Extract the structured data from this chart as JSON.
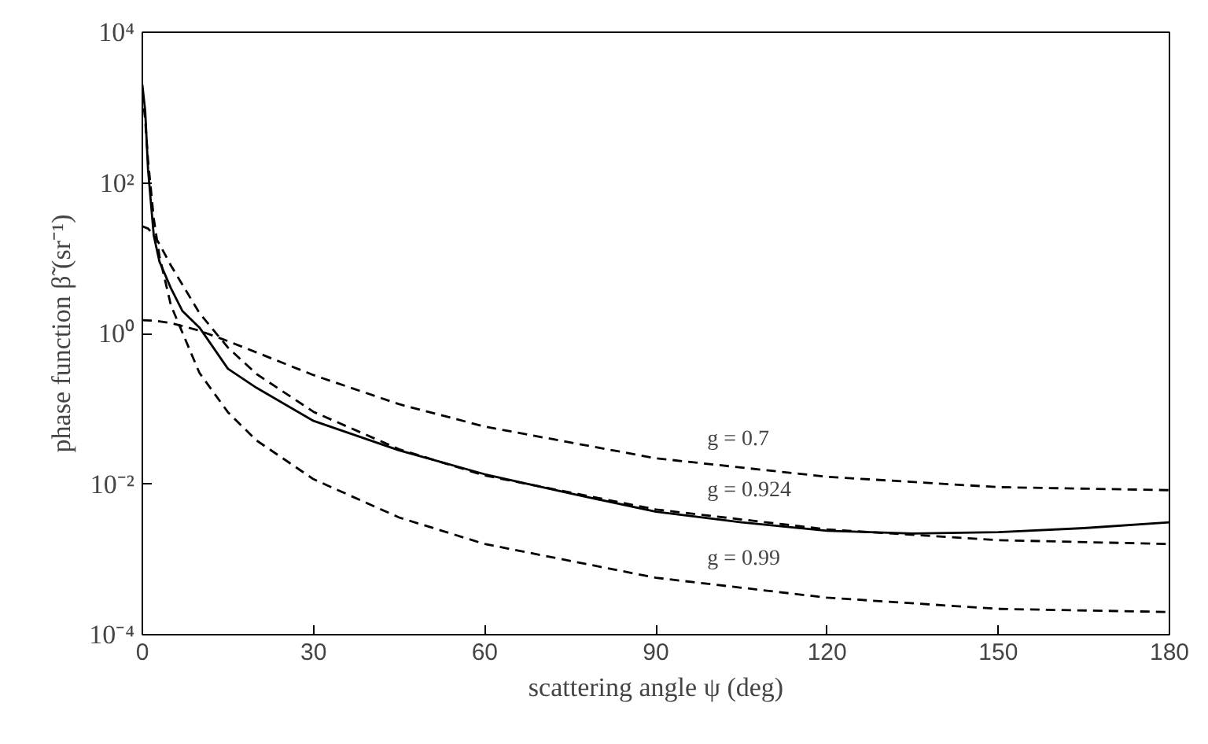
{
  "chart_data": {
    "type": "line",
    "xlabel": "scattering angle ψ (deg)",
    "ylabel": "phase function β̃ (sr⁻¹)",
    "log": "y",
    "grid": false,
    "legend": false,
    "marker": "none",
    "xlim": [
      0,
      180
    ],
    "xticks": [
      0,
      30,
      60,
      90,
      120,
      150,
      180
    ],
    "ylim": [
      0.0001,
      10000
    ],
    "yticks": [
      {
        "value": 0.0001,
        "label": "10⁻⁴"
      },
      {
        "value": 0.01,
        "label": "10⁻²"
      },
      {
        "value": 1,
        "label": "10⁰"
      },
      {
        "value": 100,
        "label": "10²"
      },
      {
        "value": 10000,
        "label": "10⁴"
      }
    ],
    "series": [
      {
        "color": "#000000",
        "line_style": "solid",
        "x": [
          0,
          0.5,
          1,
          2,
          3,
          5,
          7,
          10,
          15,
          20,
          30,
          45,
          60,
          75,
          90,
          105,
          120,
          135,
          150,
          165,
          180
        ],
        "values": [
          2000,
          900,
          150,
          20,
          9,
          4,
          2,
          1.2,
          0.34,
          0.19,
          0.069,
          0.028,
          0.0135,
          0.0075,
          0.0043,
          0.0031,
          0.0024,
          0.0022,
          0.0023,
          0.0026,
          0.0031
        ]
      },
      {
        "name": "g = 0.7",
        "color": "#000000",
        "line_style": "dashed",
        "x": [
          0,
          2,
          5,
          10,
          15,
          20,
          30,
          45,
          60,
          90,
          120,
          150,
          180
        ],
        "values": [
          1.5,
          1.48,
          1.38,
          1.09,
          0.79,
          0.56,
          0.28,
          0.115,
          0.058,
          0.022,
          0.0125,
          0.0091,
          0.0083
        ]
      },
      {
        "name": "g = 0.924",
        "color": "#000000",
        "line_style": "dashed",
        "x": [
          0,
          1,
          2,
          3,
          5,
          10,
          15,
          20,
          30,
          45,
          60,
          90,
          120,
          150,
          180
        ],
        "values": [
          26.5,
          24.7,
          20.3,
          15.4,
          8.0,
          1.87,
          0.65,
          0.29,
          0.091,
          0.029,
          0.013,
          0.0046,
          0.0025,
          0.0018,
          0.0016
        ]
      },
      {
        "name": "g = 0.99",
        "color": "#000000",
        "line_style": "dashed",
        "x": [
          0,
          0.5,
          1,
          2,
          3,
          5,
          10,
          15,
          20,
          30,
          45,
          60,
          90,
          120,
          150,
          180
        ],
        "values": [
          1584,
          684,
          197,
          33.5,
          10.6,
          2.37,
          0.3,
          0.09,
          0.038,
          0.0116,
          0.0036,
          0.0016,
          0.00057,
          0.00031,
          0.00022,
          0.0002
        ]
      }
    ]
  }
}
